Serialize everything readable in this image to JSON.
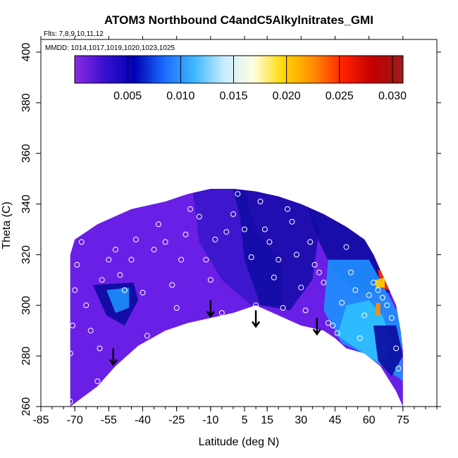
{
  "chart_data": {
    "type": "heatmap",
    "title": "ATOM3 Northbound C4andC5Alkylnitrates_GMI",
    "flights_text": "Flts: 7,8,9,10,11,12",
    "dates_text": "MMDD: 1014,1017,1019,1020,1023,1025",
    "xlabel": "Latitude (deg N)",
    "ylabel": "Theta (C)",
    "xlim": [
      -85,
      90
    ],
    "ylim": [
      260,
      405
    ],
    "x_ticks": [
      -85,
      -70,
      -55,
      -40,
      -25,
      -10,
      5,
      15,
      30,
      45,
      60,
      75
    ],
    "y_ticks": [
      260,
      280,
      300,
      320,
      340,
      360,
      380,
      400
    ],
    "colorbar": {
      "min": 0.0,
      "max": 0.031,
      "ticks": [
        0.005,
        0.01,
        0.015,
        0.02,
        0.025,
        0.03
      ],
      "tick_labels": [
        "0.005",
        "0.010",
        "0.015",
        "0.020",
        "0.025",
        "0.030"
      ],
      "colors": [
        "#8a2be2",
        "#3a0fd0",
        "#0000b4",
        "#1b6cff",
        "#3fb7ff",
        "#c8ecff",
        "#ffffe0",
        "#ffd700",
        "#ff8c00",
        "#ff2000",
        "#c00000",
        "#9c1c1c"
      ]
    },
    "field_colors": {
      "background": "#6a1fe6",
      "dark_band": "#1a0fb8",
      "navy": "#0a0a9e",
      "bright_blue": "#1e90ff",
      "cyan": "#30c0ff",
      "hot": "#ff2a00",
      "yellow": "#ffd000"
    },
    "curtain_top": [
      [
        -72,
        320
      ],
      [
        -70,
        326
      ],
      [
        -60,
        332
      ],
      [
        -45,
        338
      ],
      [
        -30,
        341
      ],
      [
        -20,
        344
      ],
      [
        -10,
        346
      ],
      [
        0,
        346
      ],
      [
        10,
        345
      ],
      [
        20,
        343
      ],
      [
        30,
        340
      ],
      [
        40,
        336
      ],
      [
        50,
        331
      ],
      [
        58,
        326
      ],
      [
        62,
        320
      ],
      [
        65,
        314
      ],
      [
        68,
        308
      ],
      [
        72,
        300
      ],
      [
        74,
        290
      ],
      [
        75,
        282
      ]
    ],
    "curtain_bottom": [
      [
        -72,
        260
      ],
      [
        -60,
        268
      ],
      [
        -52,
        276
      ],
      [
        -42,
        284
      ],
      [
        -30,
        290
      ],
      [
        -20,
        293
      ],
      [
        -10,
        295
      ],
      [
        0,
        297
      ],
      [
        10,
        300
      ],
      [
        20,
        296
      ],
      [
        30,
        292
      ],
      [
        40,
        290
      ],
      [
        45,
        287
      ],
      [
        50,
        283
      ],
      [
        58,
        281
      ],
      [
        65,
        276
      ],
      [
        72,
        266
      ],
      [
        75,
        260
      ]
    ],
    "observations": [
      [
        -72,
        262
      ],
      [
        -72,
        281
      ],
      [
        -71,
        292
      ],
      [
        -70,
        306
      ],
      [
        -69,
        316
      ],
      [
        -67,
        325
      ],
      [
        -65,
        300
      ],
      [
        -63,
        290
      ],
      [
        -60,
        270
      ],
      [
        -59,
        283
      ],
      [
        -58,
        310
      ],
      [
        -55,
        318
      ],
      [
        -52,
        322
      ],
      [
        -50,
        312
      ],
      [
        -48,
        306
      ],
      [
        -45,
        318
      ],
      [
        -43,
        326
      ],
      [
        -40,
        305
      ],
      [
        -38,
        288
      ],
      [
        -35,
        322
      ],
      [
        -33,
        332
      ],
      [
        -30,
        325
      ],
      [
        -27,
        308
      ],
      [
        -25,
        299
      ],
      [
        -23,
        318
      ],
      [
        -21,
        328
      ],
      [
        -19,
        338
      ],
      [
        -15,
        335
      ],
      [
        -12,
        318
      ],
      [
        -10,
        310
      ],
      [
        -8,
        326
      ],
      [
        -5,
        297
      ],
      [
        -3,
        329
      ],
      [
        0,
        336
      ],
      [
        2,
        344
      ],
      [
        5,
        330
      ],
      [
        8,
        319
      ],
      [
        10,
        300
      ],
      [
        12,
        341
      ],
      [
        14,
        330
      ],
      [
        16,
        325
      ],
      [
        18,
        311
      ],
      [
        20,
        318
      ],
      [
        22,
        299
      ],
      [
        24,
        338
      ],
      [
        26,
        333
      ],
      [
        28,
        320
      ],
      [
        30,
        307
      ],
      [
        32,
        298
      ],
      [
        34,
        325
      ],
      [
        36,
        316
      ],
      [
        38,
        313
      ],
      [
        40,
        309
      ],
      [
        42,
        293
      ],
      [
        44,
        292
      ],
      [
        46,
        289
      ],
      [
        48,
        301
      ],
      [
        50,
        323
      ],
      [
        52,
        313
      ],
      [
        54,
        306
      ],
      [
        56,
        287
      ],
      [
        58,
        296
      ],
      [
        60,
        304
      ],
      [
        62,
        309
      ],
      [
        64,
        306
      ],
      [
        66,
        303
      ],
      [
        68,
        300
      ],
      [
        70,
        295
      ],
      [
        72,
        283
      ],
      [
        73,
        275
      ]
    ],
    "arrows": [
      [
        -53,
        283
      ],
      [
        -10,
        302
      ],
      [
        10,
        298
      ],
      [
        37,
        295
      ]
    ]
  }
}
